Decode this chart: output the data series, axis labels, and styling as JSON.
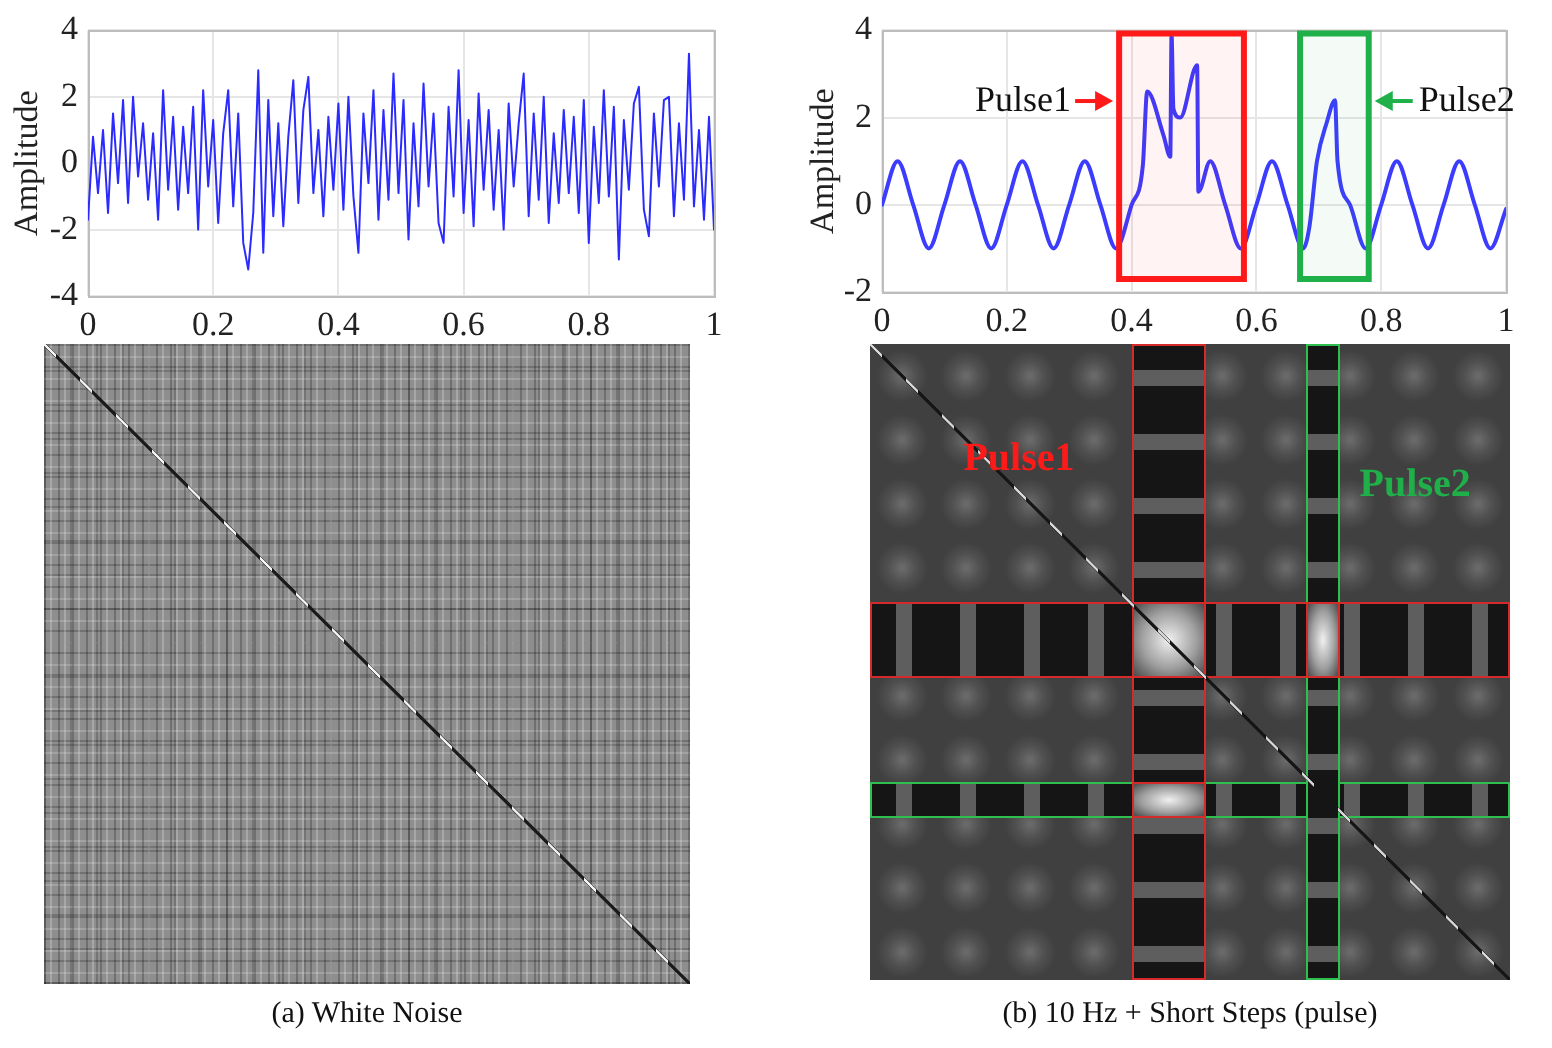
{
  "chart_data": [
    {
      "type": "line",
      "ylabel": "Amplitude",
      "xlim": [
        0,
        1
      ],
      "xticks": [
        0,
        0.2,
        0.4,
        0.6,
        0.8,
        1
      ],
      "ylim": [
        -4,
        4
      ],
      "yticks": [
        -4,
        -2,
        0,
        2,
        4
      ],
      "grid": true,
      "x": [
        0,
        0.008,
        0.016,
        0.024,
        0.032,
        0.04,
        0.048,
        0.056,
        0.064,
        0.072,
        0.08,
        0.088,
        0.096,
        0.104,
        0.112,
        0.12,
        0.128,
        0.136,
        0.144,
        0.152,
        0.16,
        0.168,
        0.176,
        0.184,
        0.192,
        0.2,
        0.208,
        0.216,
        0.224,
        0.232,
        0.24,
        0.248,
        0.256,
        0.264,
        0.272,
        0.28,
        0.288,
        0.296,
        0.304,
        0.312,
        0.32,
        0.328,
        0.336,
        0.344,
        0.352,
        0.36,
        0.368,
        0.376,
        0.384,
        0.392,
        0.4,
        0.408,
        0.416,
        0.424,
        0.432,
        0.44,
        0.448,
        0.456,
        0.464,
        0.472,
        0.48,
        0.488,
        0.496,
        0.504,
        0.512,
        0.52,
        0.528,
        0.536,
        0.544,
        0.552,
        0.56,
        0.568,
        0.576,
        0.584,
        0.592,
        0.6,
        0.608,
        0.616,
        0.624,
        0.632,
        0.64,
        0.648,
        0.656,
        0.664,
        0.672,
        0.68,
        0.688,
        0.696,
        0.704,
        0.712,
        0.72,
        0.728,
        0.736,
        0.744,
        0.752,
        0.76,
        0.768,
        0.776,
        0.784,
        0.792,
        0.8,
        0.808,
        0.816,
        0.824,
        0.832,
        0.84,
        0.848,
        0.856,
        0.864,
        0.872,
        0.88,
        0.888,
        0.896,
        0.904,
        0.912,
        0.92,
        0.928,
        0.936,
        0.944,
        0.952,
        0.96,
        0.968,
        0.976,
        0.984,
        0.992,
        1
      ],
      "series": [
        {
          "color": "#2b2bff",
          "values": [
            -1.7,
            0.8,
            -0.9,
            1.0,
            -1.5,
            1.5,
            -0.6,
            1.9,
            -1.2,
            2.0,
            -0.4,
            1.2,
            -1.1,
            0.9,
            -1.7,
            2.2,
            -0.8,
            1.4,
            -1.4,
            1.1,
            -0.9,
            1.7,
            -2.0,
            2.2,
            -0.7,
            1.3,
            -1.8,
            0.9,
            2.2,
            -1.3,
            1.5,
            -2.4,
            -3.2,
            -1.5,
            2.8,
            -2.7,
            1.9,
            -1.6,
            1.2,
            -1.9,
            0.8,
            2.5,
            -1.2,
            1.6,
            2.6,
            -0.9,
            1.0,
            -1.6,
            1.4,
            -0.8,
            1.8,
            -1.4,
            2.0,
            -1.0,
            -2.7,
            1.5,
            -0.6,
            2.2,
            -1.7,
            1.6,
            -1.1,
            2.7,
            -0.9,
            1.9,
            -2.3,
            1.2,
            -1.3,
            2.4,
            -0.7,
            1.5,
            -1.8,
            -2.4,
            1.7,
            -1.0,
            2.8,
            -1.5,
            1.3,
            -1.9,
            2.1,
            -0.8,
            1.6,
            -1.4,
            1.0,
            -2.0,
            1.8,
            -0.7,
            1.2,
            2.7,
            -1.6,
            1.5,
            -1.1,
            2.0,
            -1.8,
            0.9,
            -1.2,
            1.6,
            -0.9,
            1.4,
            -1.5,
            1.9,
            -2.4,
            1.1,
            -1.2,
            2.2,
            -1.0,
            1.7,
            -2.9,
            1.3,
            -0.8,
            1.8,
            2.3,
            -1.4,
            -2.2,
            1.5,
            -0.7,
            1.9,
            2.0,
            -1.6,
            1.2,
            -1.1,
            3.3,
            -1.3,
            1.0,
            -1.7,
            1.4,
            -2.0
          ]
        }
      ],
      "annotations": [
        "(a) White Noise"
      ]
    },
    {
      "type": "line",
      "ylabel": "Amplitude",
      "xlim": [
        0,
        1
      ],
      "xticks": [
        0,
        0.2,
        0.4,
        0.6,
        0.8,
        1
      ],
      "ylim": [
        -2,
        4
      ],
      "yticks": [
        -2,
        0,
        2,
        4
      ],
      "grid": true,
      "x": [
        0,
        0.025,
        0.05,
        0.075,
        0.1,
        0.125,
        0.15,
        0.175,
        0.2,
        0.225,
        0.25,
        0.275,
        0.3,
        0.325,
        0.35,
        0.375,
        0.4,
        0.418,
        0.425,
        0.451,
        0.462,
        0.464,
        0.467,
        0.478,
        0.505,
        0.507,
        0.526,
        0.55,
        0.575,
        0.6,
        0.625,
        0.65,
        0.675,
        0.685,
        0.697,
        0.713,
        0.726,
        0.73,
        0.75,
        0.775,
        0.8,
        0.825,
        0.85,
        0.875,
        0.9,
        0.925,
        0.95,
        0.975,
        1
      ],
      "series": [
        {
          "color": "#3c3cff",
          "values": [
            0,
            1,
            0,
            -1,
            0,
            1,
            0,
            -1,
            0,
            1,
            0,
            -1,
            0,
            1,
            0,
            -1,
            0,
            0.9,
            2.6,
            1.6,
            1.1,
            3.9,
            2.2,
            2.0,
            3.2,
            0.3,
            1.0,
            0,
            -1,
            0,
            1,
            0,
            -1,
            -0.5,
            1.0,
            1.9,
            2.4,
            1.0,
            0,
            -1,
            0,
            1,
            0,
            -1,
            0,
            1,
            0,
            -1,
            -0.1
          ]
        }
      ],
      "bands": [
        {
          "axis": "x",
          "from": 0.38,
          "to": 0.58,
          "label": "Pulse1",
          "color": "#ff1a1a"
        },
        {
          "axis": "x",
          "from": 0.67,
          "to": 0.78,
          "label": "Pulse2",
          "color": "#1fb04a"
        }
      ],
      "annotations": [
        "(b) 10 Hz + Short Steps (pulse)",
        "Pulse1",
        "Pulse2"
      ]
    }
  ]
}
